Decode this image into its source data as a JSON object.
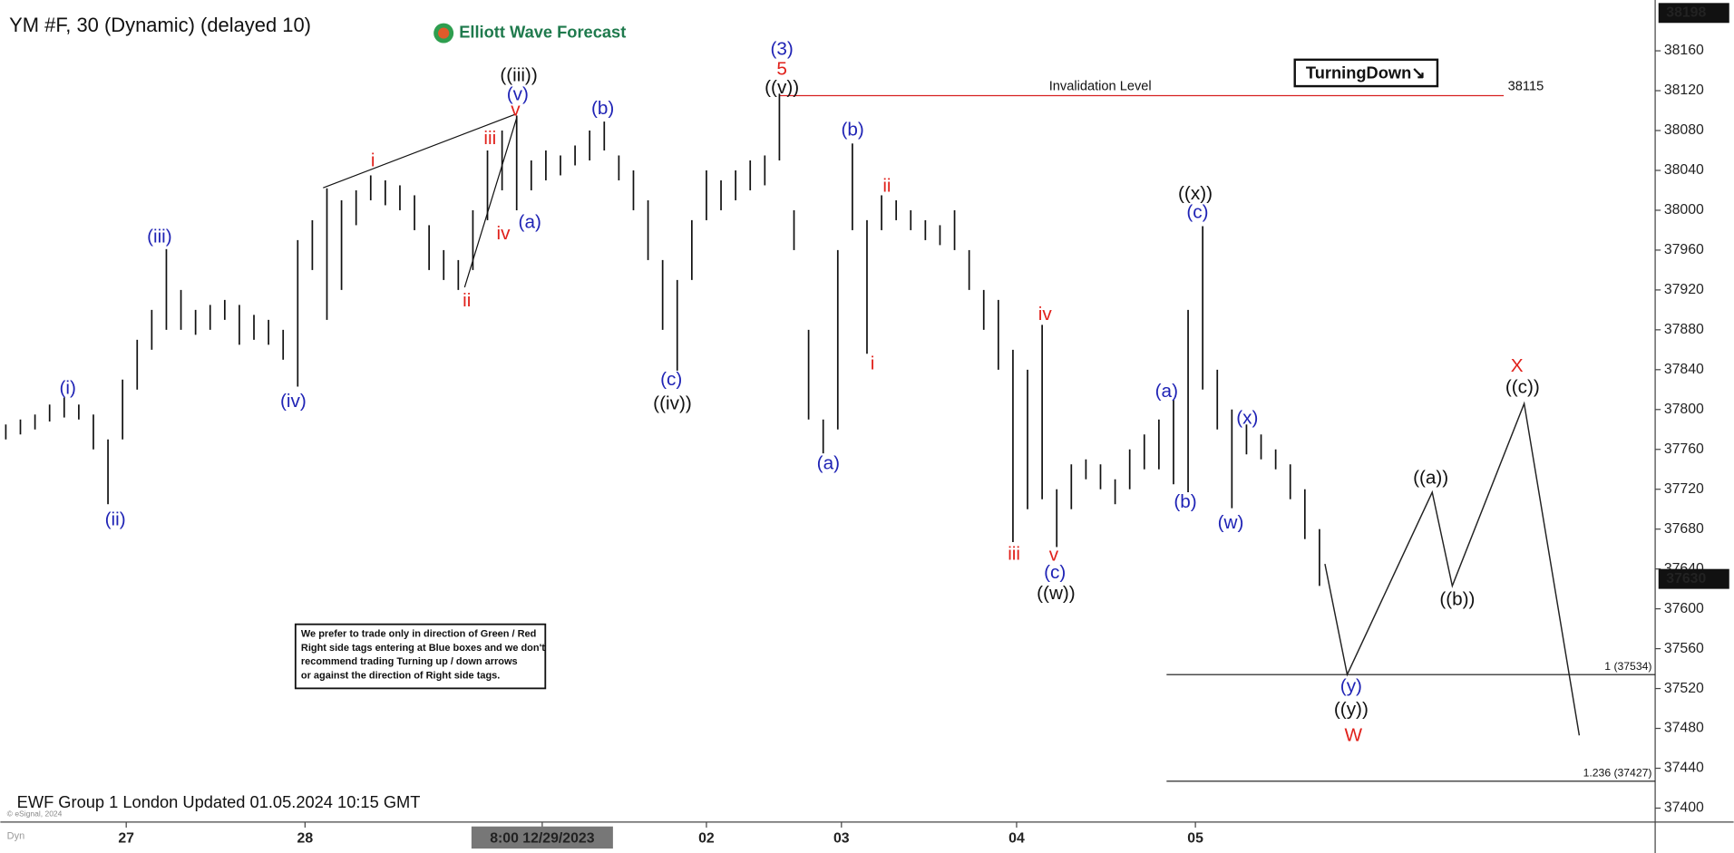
{
  "chart_data": {
    "type": "hilo",
    "title": "YM #F, 30 (Dynamic) (delayed 10)",
    "logo": "Elliott Wave Forecast",
    "footer": "EWF Group 1 London Updated 01.05.2024 10:15 GMT",
    "copyright": "© eSignal, 2024",
    "corner": "Dyn",
    "tag": "TurningDown↘",
    "note": [
      "We prefer to trade only in direction of Green / Red",
      "Right side tags entering at Blue boxes and we don't",
      "recommend trading Turning up / down arrows",
      "or against the direction of Right side tags."
    ],
    "invalidation": {
      "label": "Invalidation Level",
      "value": 38115
    },
    "fib_levels": [
      {
        "label": "1 (37534)",
        "value": 37534
      },
      {
        "label": "1.236 (37427)",
        "value": 37427
      }
    ],
    "price_tags": [
      38198,
      37630
    ],
    "xlim": [
      -1.5,
      452
    ],
    "ylim": [
      37386,
      38211
    ],
    "yticks": [
      37400,
      37440,
      37480,
      37520,
      37560,
      37600,
      37640,
      37680,
      37720,
      37760,
      37800,
      37840,
      37880,
      37920,
      37960,
      38000,
      38040,
      38080,
      38120,
      38160
    ],
    "xticks": [
      {
        "value": 33,
        "label": "27"
      },
      {
        "value": 82,
        "label": "28"
      },
      {
        "value": 147,
        "label": "8:00 12/29/2023"
      },
      {
        "value": 192,
        "label": "02"
      },
      {
        "value": 229,
        "label": "03"
      },
      {
        "value": 277,
        "label": "04"
      },
      {
        "value": 326,
        "label": "05"
      }
    ],
    "bars": {
      "color": "#111111",
      "x": [
        0,
        4,
        8,
        12,
        16,
        20,
        24,
        28,
        32,
        36,
        40,
        44,
        48,
        52,
        56,
        60,
        64,
        68,
        72,
        76,
        80,
        84,
        88,
        92,
        96,
        100,
        104,
        108,
        112,
        116,
        120,
        124,
        128,
        132,
        136,
        140,
        144,
        148,
        152,
        156,
        160,
        164,
        168,
        172,
        176,
        180,
        184,
        188,
        192,
        196,
        200,
        204,
        208,
        212,
        216,
        220,
        224,
        228,
        232,
        236,
        240,
        244,
        248,
        252,
        256,
        260,
        264,
        268,
        272,
        276,
        280,
        284,
        288,
        292,
        296,
        300,
        304,
        308,
        312,
        316,
        320,
        324,
        328,
        332,
        336,
        340,
        344,
        348,
        352,
        356,
        360
      ],
      "high": [
        37785,
        37790,
        37795,
        37805,
        37812,
        37805,
        37795,
        37770,
        37830,
        37870,
        37900,
        37961,
        37920,
        37900,
        37905,
        37910,
        37905,
        37895,
        37890,
        37880,
        37970,
        37990,
        38022,
        38010,
        38020,
        38035,
        38030,
        38025,
        38015,
        37985,
        37960,
        37950,
        38000,
        38060,
        38080,
        38095,
        38050,
        38060,
        38055,
        38065,
        38080,
        38089,
        38055,
        38040,
        38010,
        37950,
        37930,
        37990,
        38040,
        38030,
        38040,
        38050,
        38055,
        38117,
        38000,
        37880,
        37790,
        37960,
        38067,
        37990,
        38015,
        38010,
        38000,
        37990,
        37985,
        38000,
        37960,
        37920,
        37910,
        37860,
        37840,
        37885,
        37720,
        37745,
        37750,
        37745,
        37730,
        37760,
        37775,
        37790,
        37810,
        37900,
        37984,
        37840,
        37800,
        37785,
        37775,
        37760,
        37745,
        37720,
        37680
      ],
      "low": [
        37770,
        37775,
        37780,
        37788,
        37792,
        37790,
        37760,
        37705,
        37770,
        37820,
        37860,
        37880,
        37880,
        37875,
        37880,
        37890,
        37865,
        37870,
        37865,
        37850,
        37823,
        37940,
        37890,
        37920,
        37985,
        38010,
        38005,
        38000,
        37980,
        37940,
        37930,
        37920,
        37940,
        37990,
        38020,
        38000,
        38020,
        38030,
        38035,
        38045,
        38050,
        38060,
        38030,
        38000,
        37950,
        37880,
        37839,
        37930,
        37990,
        38000,
        38010,
        38020,
        38025,
        38050,
        37960,
        37790,
        37756,
        37780,
        37980,
        37856,
        37980,
        37990,
        37980,
        37970,
        37965,
        37960,
        37920,
        37880,
        37840,
        37667,
        37700,
        37710,
        37662,
        37700,
        37730,
        37720,
        37705,
        37720,
        37740,
        37740,
        37725,
        37717,
        37820,
        37780,
        37701,
        37755,
        37750,
        37740,
        37710,
        37670,
        37623
      ]
    },
    "projection": {
      "x": [
        361.5,
        367.6,
        390.9,
        396.4,
        416.1,
        431.2
      ],
      "values": [
        37645,
        37534,
        37717,
        37623,
        37806,
        37473
      ]
    },
    "wave_labels": [
      {
        "text": "(i)",
        "color": "#1f23b5"
      },
      {
        "text": "(ii)",
        "color": "#1f23b5"
      },
      {
        "text": "(iii)",
        "color": "#1f23b5"
      },
      {
        "text": "(iv)",
        "color": "#1f23b5"
      },
      {
        "text": "i",
        "color": "#e0211b"
      },
      {
        "text": "ii",
        "color": "#e0211b"
      },
      {
        "text": "iii",
        "color": "#e0211b"
      },
      {
        "text": "iv",
        "color": "#e0211b"
      },
      {
        "text": "v",
        "color": "#e0211b"
      },
      {
        "text": "(v)",
        "color": "#1f23b5"
      },
      {
        "text": "((iii))",
        "color": "#111111"
      },
      {
        "text": "(a)",
        "color": "#1f23b5"
      },
      {
        "text": "(b)",
        "color": "#1f23b5"
      },
      {
        "text": "(c)",
        "color": "#1f23b5"
      },
      {
        "text": "((iv))",
        "color": "#111111"
      },
      {
        "text": "(3)",
        "color": "#1f23b5"
      },
      {
        "text": "5",
        "color": "#e0211b"
      },
      {
        "text": "((v))",
        "color": "#111111"
      },
      {
        "text": "(b)",
        "color": "#1f23b5"
      },
      {
        "text": "(a)",
        "color": "#1f23b5"
      },
      {
        "text": "ii",
        "color": "#e0211b"
      },
      {
        "text": "i",
        "color": "#e0211b"
      },
      {
        "text": "iii",
        "color": "#e0211b"
      },
      {
        "text": "iv",
        "color": "#e0211b"
      },
      {
        "text": "v",
        "color": "#e0211b"
      },
      {
        "text": "(c)",
        "color": "#1f23b5"
      },
      {
        "text": "((w))",
        "color": "#111111"
      },
      {
        "text": "((x))",
        "color": "#111111"
      },
      {
        "text": "(c)",
        "color": "#1f23b5"
      },
      {
        "text": "(a)",
        "color": "#1f23b5"
      },
      {
        "text": "(b)",
        "color": "#1f23b5"
      },
      {
        "text": "(x)",
        "color": "#1f23b5"
      },
      {
        "text": "(w)",
        "color": "#1f23b5"
      },
      {
        "text": "((a))",
        "color": "#111111"
      },
      {
        "text": "((b))",
        "color": "#111111"
      },
      {
        "text": "X",
        "color": "#e0211b"
      },
      {
        "text": "((c))",
        "color": "#111111"
      },
      {
        "text": "(y)",
        "color": "#1f23b5"
      },
      {
        "text": "((y))",
        "color": "#111111"
      },
      {
        "text": "W",
        "color": "#e0211b"
      }
    ]
  }
}
